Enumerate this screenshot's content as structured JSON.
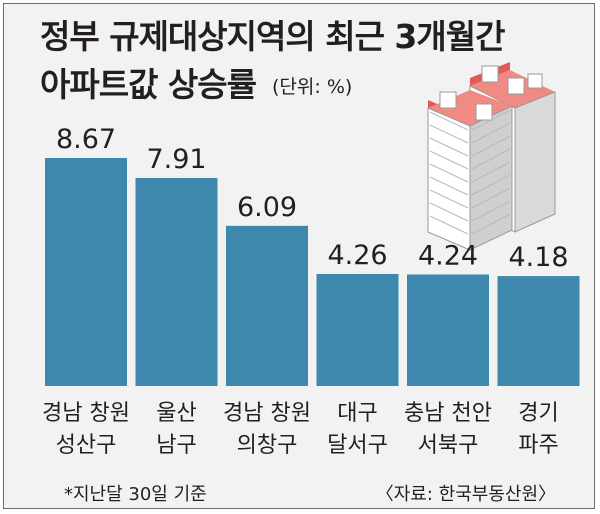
{
  "header": {
    "title_line1": "정부 규제대상지역의 최근 3개월간",
    "title_line2": "아파트값 상승률",
    "unit": "(단위: %)"
  },
  "chart_data": {
    "type": "bar",
    "title": "정부 규제대상지역의 최근 3개월간 아파트값 상승률",
    "unit": "(단위: %)",
    "categories": [
      [
        "경남 창원",
        "성산구"
      ],
      [
        "울산",
        "남구"
      ],
      [
        "경남 창원",
        "의창구"
      ],
      [
        "대구",
        "달서구"
      ],
      [
        "충남 천안",
        "서북구"
      ],
      [
        "경기",
        "파주"
      ]
    ],
    "values": [
      8.67,
      7.91,
      6.09,
      4.26,
      4.24,
      4.18
    ],
    "value_labels": [
      "8.67",
      "7.91",
      "6.09",
      "4.26",
      "4.24",
      "4.18"
    ],
    "ylim": [
      0,
      9.2
    ],
    "grid": false,
    "bar_color": "#3e87ad"
  },
  "footer": {
    "footnote": "*지난달 30일 기준",
    "source": "〈자료: 한국부동산원〉"
  },
  "decoration": {
    "illustration": "apartment-buildings-icon"
  }
}
